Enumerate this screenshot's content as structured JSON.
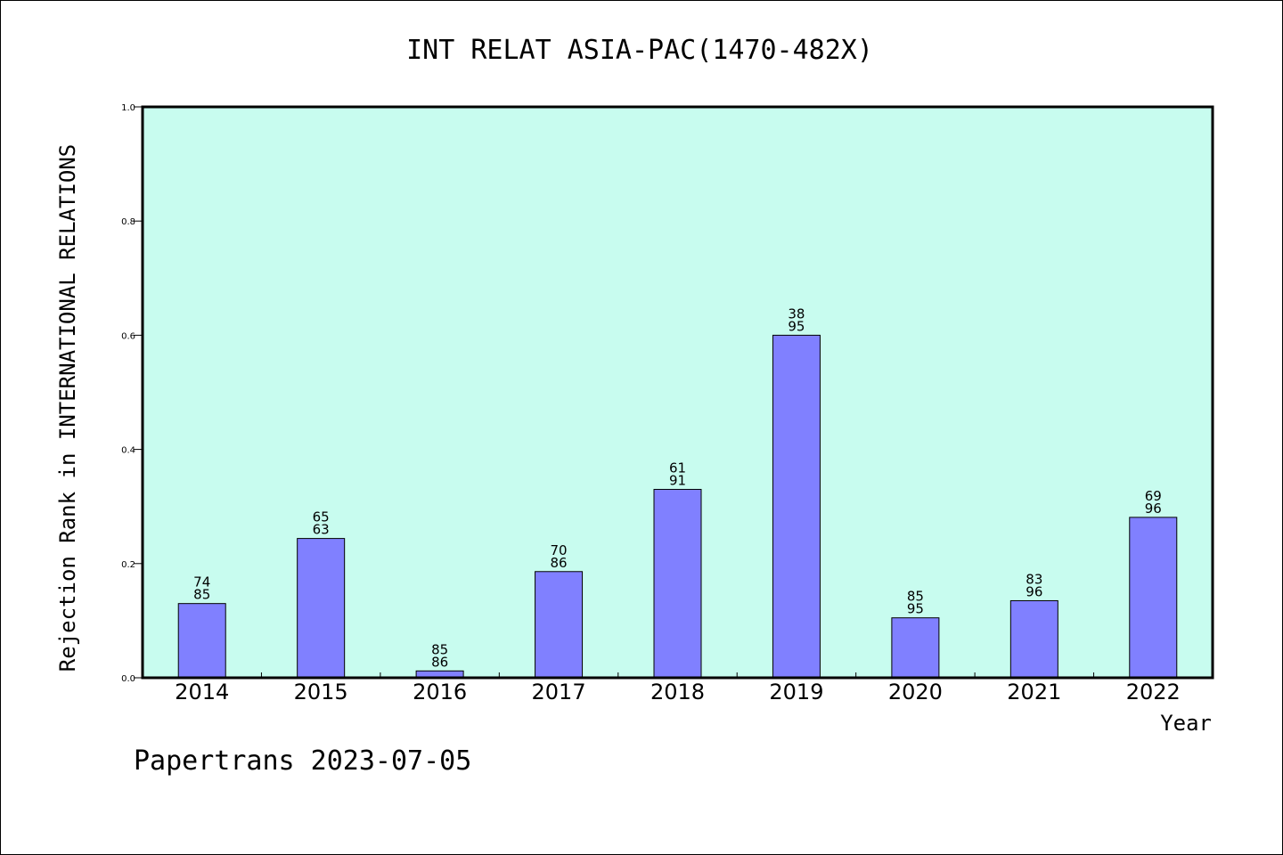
{
  "chart_data": {
    "type": "bar",
    "title": "INT RELAT ASIA-PAC(1470-482X)",
    "xlabel": "Year",
    "ylabel": "Rejection Rank in INTERNATIONAL RELATIONS",
    "ylim": [
      0,
      1.0
    ],
    "yticks": [
      "0.0",
      "0.2",
      "0.4",
      "0.6",
      "0.8",
      "1.0"
    ],
    "categories": [
      "2014",
      "2015",
      "2016",
      "2017",
      "2018",
      "2019",
      "2020",
      "2021",
      "2022"
    ],
    "values": [
      0.13,
      0.244,
      0.012,
      0.186,
      0.33,
      0.6,
      0.105,
      0.135,
      0.281
    ],
    "labels": [
      [
        "74",
        "85"
      ],
      [
        "65",
        "63"
      ],
      [
        "85",
        "86"
      ],
      [
        "70",
        "86"
      ],
      [
        "61",
        "91"
      ],
      [
        "38",
        "95"
      ],
      [
        "85",
        "95"
      ],
      [
        "83",
        "96"
      ],
      [
        "69",
        "96"
      ]
    ],
    "grid": false,
    "colors": {
      "plot_background": "#c8fcef",
      "bar_fill": "#8080ff",
      "bar_stroke": "#000000"
    }
  },
  "footer": "Papertrans 2023-07-05"
}
